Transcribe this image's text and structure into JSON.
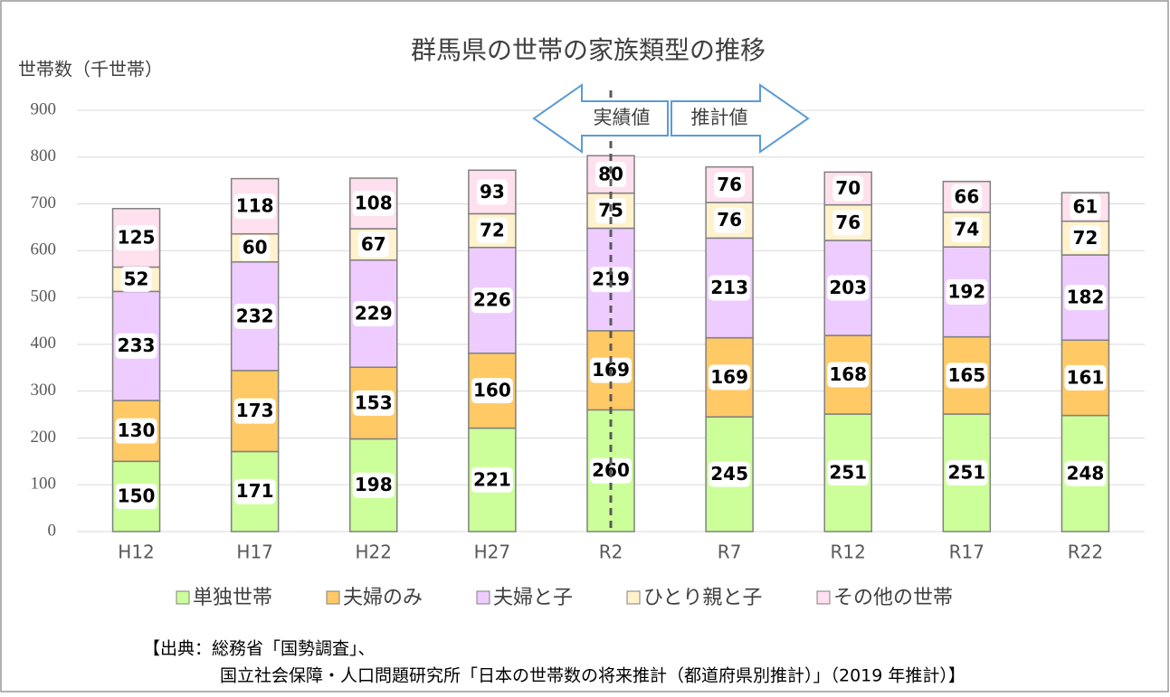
{
  "chart_data": {
    "type": "stacked_bar",
    "title": "群馬県の世帯の家族類型の推移",
    "y_label": "世帯数（千世帯）",
    "categories": [
      "H12",
      "H17",
      "H22",
      "H27",
      "R2",
      "R7",
      "R12",
      "R17",
      "R22"
    ],
    "series": [
      {
        "name": "単独世帯",
        "color": "#ccff99",
        "values": [
          150,
          171,
          198,
          221,
          260,
          245,
          251,
          251,
          248
        ]
      },
      {
        "name": "夫婦のみ",
        "color": "#ffc966",
        "values": [
          130,
          173,
          153,
          160,
          169,
          169,
          168,
          165,
          161
        ]
      },
      {
        "name": "夫婦と子",
        "color": "#eeccff",
        "values": [
          233,
          232,
          229,
          226,
          219,
          213,
          203,
          192,
          182
        ]
      },
      {
        "name": "ひとり親と子",
        "color": "#fff2cc",
        "values": [
          52,
          60,
          67,
          72,
          75,
          76,
          76,
          74,
          72
        ]
      },
      {
        "name": "その他の世帯",
        "color": "#ffe0ee",
        "values": [
          125,
          118,
          108,
          93,
          80,
          76,
          70,
          66,
          61
        ]
      }
    ],
    "ylim": [
      0,
      900
    ],
    "yticks": [
      0,
      100,
      200,
      300,
      400,
      500,
      600,
      700,
      800,
      900
    ],
    "grid": true,
    "annotations": [
      "実績値",
      "推計値"
    ],
    "source": [
      "【出典：総務省「国勢調査」、",
      "国立社会保障・人口問題研究所「日本の世帯数の将来推計（都道府県別推計）」（2019 年推計）】"
    ]
  }
}
